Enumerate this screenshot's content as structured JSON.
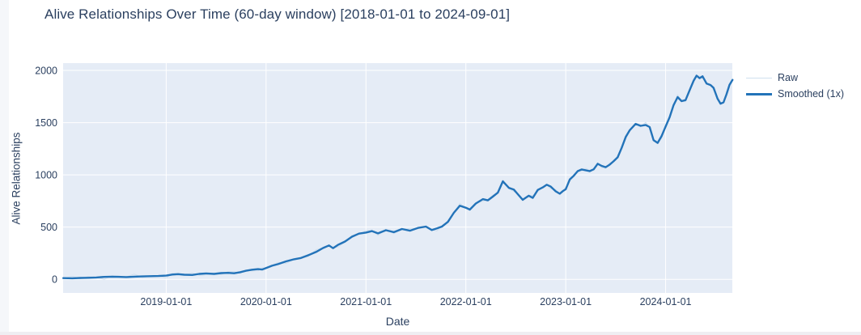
{
  "page": {
    "background": "#ffffff",
    "left_edge_color": "#f5f7fa",
    "bottom_edge_color": "#efeef2"
  },
  "chart_data": {
    "type": "line",
    "title": "Alive Relationships Over Time (60-day window) [2018-01-01 to 2024-09-01]",
    "xlabel": "Date",
    "ylabel": "Alive Relationships",
    "plot_bg": "#e5ecf6",
    "grid_color": "#ffffff",
    "text_color": "#2a3f5f",
    "legend_position": "right-top",
    "grid": true,
    "x_unit": "years since 2018-01-01",
    "xlim": [
      -0.032,
      6.668
    ],
    "ylim": [
      -130,
      2070
    ],
    "xticks": {
      "values": [
        1,
        2,
        3,
        4,
        5,
        6
      ],
      "labels": [
        "2019-01-01",
        "2020-01-01",
        "2021-01-01",
        "2022-01-01",
        "2023-01-01",
        "2024-01-01"
      ]
    },
    "yticks": {
      "values": [
        0,
        500,
        1000,
        1500,
        2000
      ],
      "labels": [
        "0",
        "500",
        "1000",
        "1500",
        "2000"
      ]
    },
    "series": [
      {
        "name": "Raw",
        "color": "#cfdfee",
        "width": 1,
        "note": "nearly invisible thin line tracking the smoothed series with small noise"
      },
      {
        "name": "Smoothed (1x)",
        "color": "#2373b9",
        "width": 2.4,
        "points": [
          [
            -0.03,
            12
          ],
          [
            0.06,
            10
          ],
          [
            0.14,
            13
          ],
          [
            0.22,
            15
          ],
          [
            0.3,
            18
          ],
          [
            0.38,
            23
          ],
          [
            0.46,
            26
          ],
          [
            0.52,
            24
          ],
          [
            0.6,
            22
          ],
          [
            0.68,
            26
          ],
          [
            0.76,
            28
          ],
          [
            0.84,
            30
          ],
          [
            0.92,
            32
          ],
          [
            1.0,
            36
          ],
          [
            1.06,
            46
          ],
          [
            1.12,
            50
          ],
          [
            1.18,
            44
          ],
          [
            1.26,
            42
          ],
          [
            1.33,
            52
          ],
          [
            1.4,
            57
          ],
          [
            1.48,
            52
          ],
          [
            1.55,
            60
          ],
          [
            1.62,
            62
          ],
          [
            1.68,
            58
          ],
          [
            1.74,
            68
          ],
          [
            1.8,
            82
          ],
          [
            1.86,
            92
          ],
          [
            1.92,
            98
          ],
          [
            1.96,
            94
          ],
          [
            2.0,
            108
          ],
          [
            2.06,
            130
          ],
          [
            2.12,
            146
          ],
          [
            2.2,
            172
          ],
          [
            2.28,
            192
          ],
          [
            2.35,
            205
          ],
          [
            2.42,
            230
          ],
          [
            2.5,
            262
          ],
          [
            2.57,
            300
          ],
          [
            2.63,
            325
          ],
          [
            2.67,
            298
          ],
          [
            2.72,
            330
          ],
          [
            2.79,
            362
          ],
          [
            2.86,
            408
          ],
          [
            2.93,
            438
          ],
          [
            3.0,
            448
          ],
          [
            3.06,
            462
          ],
          [
            3.12,
            440
          ],
          [
            3.2,
            470
          ],
          [
            3.28,
            452
          ],
          [
            3.36,
            482
          ],
          [
            3.44,
            466
          ],
          [
            3.52,
            492
          ],
          [
            3.6,
            505
          ],
          [
            3.66,
            472
          ],
          [
            3.71,
            488
          ],
          [
            3.76,
            505
          ],
          [
            3.82,
            550
          ],
          [
            3.88,
            638
          ],
          [
            3.94,
            705
          ],
          [
            4.0,
            686
          ],
          [
            4.04,
            668
          ],
          [
            4.1,
            726
          ],
          [
            4.17,
            768
          ],
          [
            4.22,
            756
          ],
          [
            4.27,
            792
          ],
          [
            4.32,
            830
          ],
          [
            4.37,
            938
          ],
          [
            4.43,
            876
          ],
          [
            4.48,
            860
          ],
          [
            4.53,
            804
          ],
          [
            4.57,
            762
          ],
          [
            4.63,
            800
          ],
          [
            4.67,
            780
          ],
          [
            4.72,
            856
          ],
          [
            4.77,
            880
          ],
          [
            4.81,
            906
          ],
          [
            4.85,
            888
          ],
          [
            4.9,
            842
          ],
          [
            4.94,
            820
          ],
          [
            4.97,
            844
          ],
          [
            5.0,
            862
          ],
          [
            5.04,
            956
          ],
          [
            5.08,
            992
          ],
          [
            5.12,
            1036
          ],
          [
            5.16,
            1052
          ],
          [
            5.2,
            1044
          ],
          [
            5.24,
            1036
          ],
          [
            5.28,
            1054
          ],
          [
            5.32,
            1106
          ],
          [
            5.36,
            1086
          ],
          [
            5.4,
            1074
          ],
          [
            5.44,
            1098
          ],
          [
            5.48,
            1132
          ],
          [
            5.52,
            1168
          ],
          [
            5.56,
            1258
          ],
          [
            5.6,
            1362
          ],
          [
            5.64,
            1426
          ],
          [
            5.7,
            1488
          ],
          [
            5.75,
            1470
          ],
          [
            5.8,
            1478
          ],
          [
            5.84,
            1458
          ],
          [
            5.88,
            1332
          ],
          [
            5.92,
            1306
          ],
          [
            5.96,
            1372
          ],
          [
            6.0,
            1462
          ],
          [
            6.04,
            1552
          ],
          [
            6.08,
            1668
          ],
          [
            6.12,
            1745
          ],
          [
            6.16,
            1706
          ],
          [
            6.2,
            1716
          ],
          [
            6.24,
            1810
          ],
          [
            6.28,
            1900
          ],
          [
            6.31,
            1950
          ],
          [
            6.34,
            1926
          ],
          [
            6.37,
            1944
          ],
          [
            6.41,
            1874
          ],
          [
            6.45,
            1860
          ],
          [
            6.48,
            1834
          ],
          [
            6.52,
            1730
          ],
          [
            6.55,
            1682
          ],
          [
            6.58,
            1694
          ],
          [
            6.61,
            1772
          ],
          [
            6.64,
            1862
          ],
          [
            6.67,
            1910
          ]
        ]
      }
    ]
  }
}
